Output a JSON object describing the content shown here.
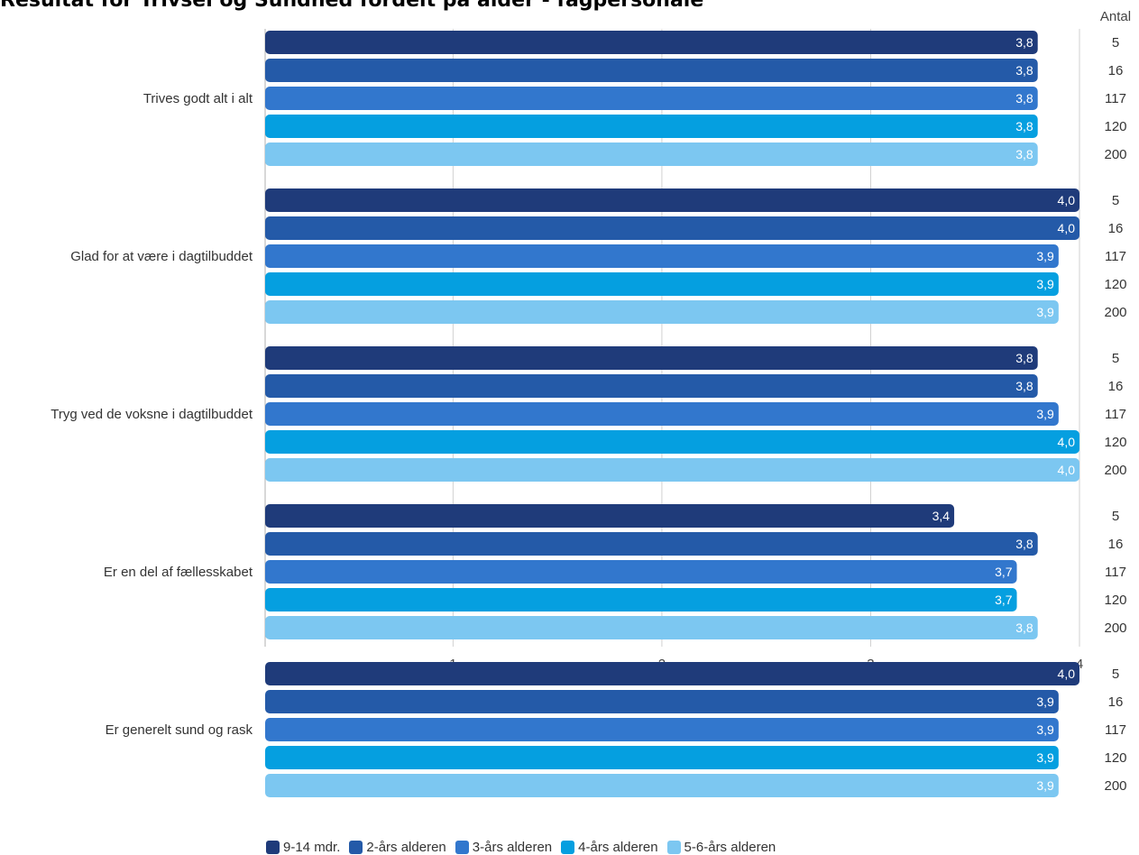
{
  "title": "Resultat for Trivsel og Sundhed fordelt på alder - fagpersonale",
  "chart_data": {
    "type": "bar",
    "orientation": "horizontal",
    "categories": [
      "Trives godt alt i alt",
      "Glad for at være i dagtilbuddet",
      "Tryg ved de voksne i dagtilbuddet",
      "Er en del af fællesskabet",
      "Er generelt sund og rask"
    ],
    "series": [
      {
        "name": "9-14 mdr.",
        "color": "#1f3b7a",
        "values": [
          3.8,
          4.0,
          3.8,
          3.4,
          4.0
        ],
        "labels": [
          "3,8",
          "4,0",
          "3,8",
          "3,4",
          "4,0"
        ]
      },
      {
        "name": "2-års alderen",
        "color": "#245aa8",
        "values": [
          3.8,
          4.0,
          3.8,
          3.8,
          3.9
        ],
        "labels": [
          "3,8",
          "4,0",
          "3,8",
          "3,8",
          "3,9"
        ]
      },
      {
        "name": "3-års alderen",
        "color": "#3277cd",
        "values": [
          3.8,
          3.9,
          3.9,
          3.7,
          3.9
        ],
        "labels": [
          "3,8",
          "3,9",
          "3,9",
          "3,7",
          "3,9"
        ]
      },
      {
        "name": "4-års alderen",
        "color": "#059fe0",
        "values": [
          3.8,
          3.9,
          4.0,
          3.7,
          3.9
        ],
        "labels": [
          "3,8",
          "3,9",
          "4,0",
          "3,7",
          "3,9"
        ]
      },
      {
        "name": "5-6-års alderen",
        "color": "#7cc7f1",
        "values": [
          3.8,
          3.9,
          4.0,
          3.8,
          3.9
        ],
        "labels": [
          "3,8",
          "3,9",
          "4,0",
          "3,8",
          "3,9"
        ]
      }
    ],
    "antal_header": "Antal",
    "antal": [
      "5",
      "16",
      "117",
      "120",
      "200"
    ],
    "xlim": [
      0.1,
      4
    ],
    "xticks": [
      1,
      2,
      3,
      4
    ],
    "grid": true,
    "legend_position": "bottom"
  }
}
